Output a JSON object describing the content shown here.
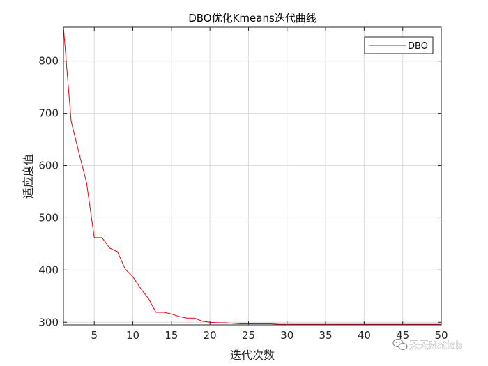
{
  "chart_data": {
    "type": "line",
    "title": "DBO优化Kmeans迭代曲线",
    "xlabel": "迭代次数",
    "ylabel": "适应度值",
    "xlim": [
      1,
      50
    ],
    "ylim": [
      295,
      865
    ],
    "xticks": [
      5,
      10,
      15,
      20,
      25,
      30,
      35,
      40,
      45,
      50
    ],
    "yticks": [
      300,
      400,
      500,
      600,
      700,
      800
    ],
    "grid": true,
    "legend_position": "top-right",
    "series": [
      {
        "name": "DBO",
        "color": "#e8000b",
        "x": [
          1,
          2,
          3,
          4,
          5,
          6,
          7,
          8,
          9,
          10,
          11,
          12,
          13,
          14,
          15,
          16,
          17,
          18,
          19,
          20,
          21,
          22,
          23,
          24,
          25,
          26,
          27,
          28,
          29,
          30,
          31,
          32,
          33,
          34,
          35,
          36,
          37,
          38,
          39,
          40,
          41,
          42,
          43,
          44,
          45,
          46,
          47,
          48,
          49,
          50
        ],
        "values": [
          865,
          685,
          625,
          567,
          462,
          462,
          442,
          435,
          402,
          387,
          365,
          346,
          319,
          319,
          316,
          311,
          308,
          308,
          302,
          300,
          299,
          299,
          298,
          297,
          297,
          297,
          297,
          297,
          296,
          296,
          296,
          296,
          296,
          296,
          296,
          296,
          296,
          296,
          296,
          296,
          296,
          296,
          296,
          296,
          296,
          296,
          296,
          296,
          296,
          296
        ]
      }
    ]
  },
  "watermark": {
    "icon": "wechat-icon",
    "text": "天天Matlab"
  }
}
